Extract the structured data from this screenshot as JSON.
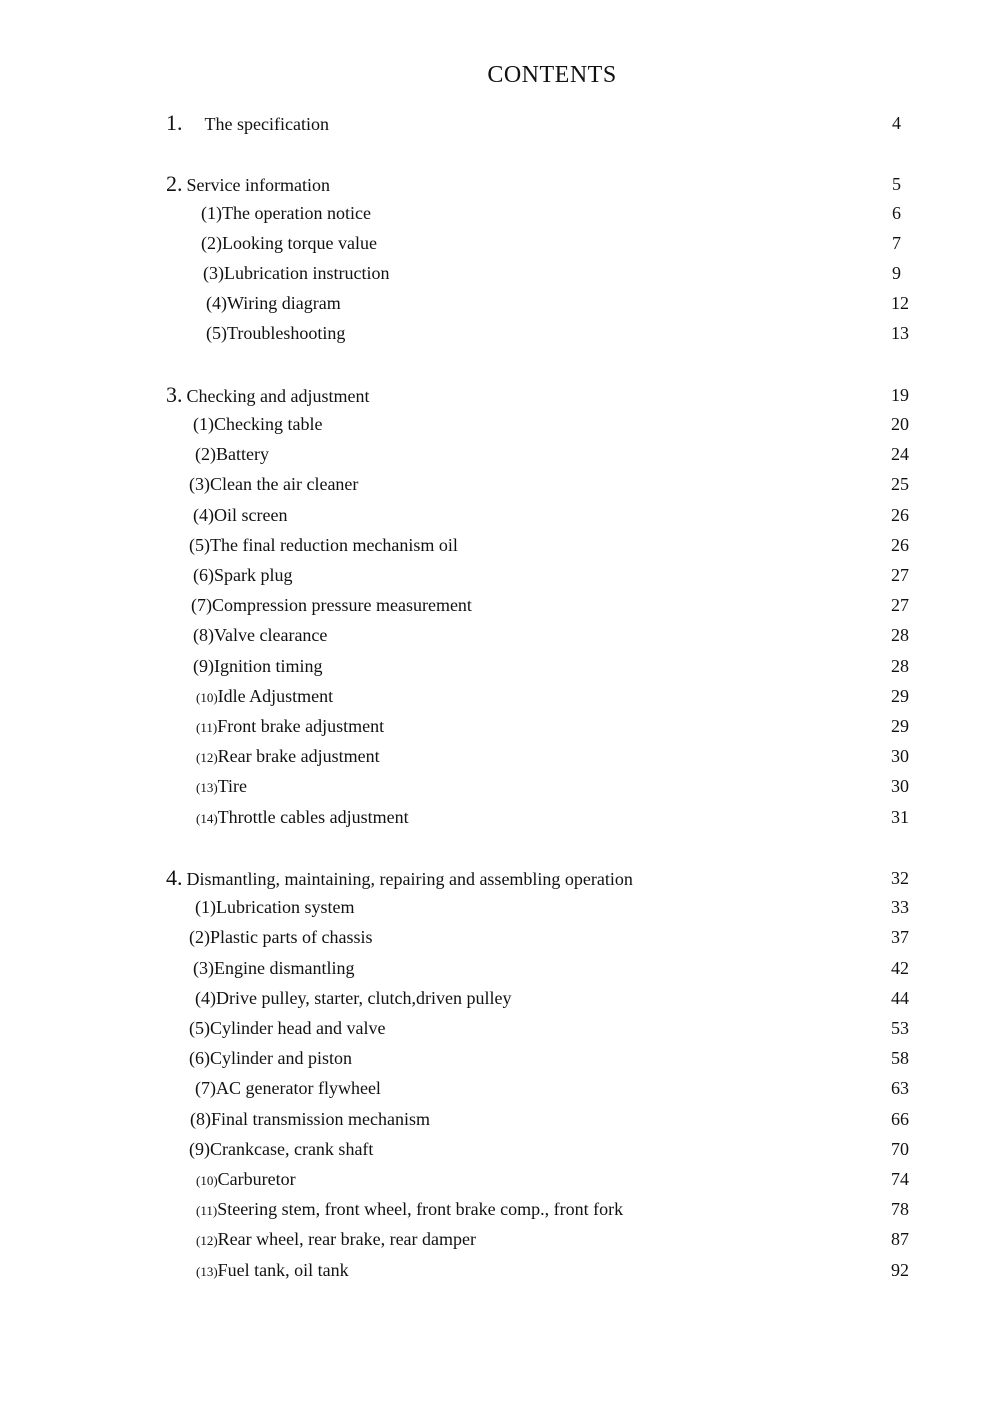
{
  "title": "CONTENTS",
  "sections": [
    {
      "number": "1.",
      "title": "The specification",
      "page": "4",
      "items": []
    },
    {
      "number": "2.",
      "title": "Service information",
      "page": "5",
      "items": [
        {
          "prefix": "(1)",
          "label": "The operation notice",
          "page": "6"
        },
        {
          "prefix": "(2)",
          "label": "Looking torque value",
          "page": "7"
        },
        {
          "prefix": "(3)",
          "label": "Lubrication instruction",
          "page": "9"
        },
        {
          "prefix": "(4)",
          "label": "Wiring diagram",
          "page": "12"
        },
        {
          "prefix": "(5)",
          "label": "Troubleshooting",
          "page": "13"
        }
      ]
    },
    {
      "number": "3.",
      "title": "Checking and adjustment",
      "page": "19",
      "items": [
        {
          "prefix": "(1)",
          "label": "Checking table",
          "page": "20"
        },
        {
          "prefix": "(2)",
          "label": "Battery",
          "page": "24"
        },
        {
          "prefix": "(3)",
          "label": "Clean the air cleaner",
          "page": "25"
        },
        {
          "prefix": "(4)",
          "label": "Oil screen",
          "page": "26"
        },
        {
          "prefix": "(5)",
          "label": "The final reduction mechanism oil",
          "page": "26"
        },
        {
          "prefix": "(6)",
          "label": "Spark plug",
          "page": "27"
        },
        {
          "prefix": "(7)",
          "label": "Compression pressure measurement",
          "page": "27"
        },
        {
          "prefix": "(8)",
          "label": "Valve clearance",
          "page": "28"
        },
        {
          "prefix": "(9)",
          "label": "Ignition timing",
          "page": "28"
        },
        {
          "prefix": "(10)",
          "label": "Idle Adjustment",
          "page": "29"
        },
        {
          "prefix": "(11)",
          "label": "Front brake adjustment",
          "page": "29"
        },
        {
          "prefix": "(12)",
          "label": "Rear brake adjustment",
          "page": "30"
        },
        {
          "prefix": "(13)",
          "label": "Tire",
          "page": "30"
        },
        {
          "prefix": "(14)",
          "label": "Throttle cables adjustment",
          "page": "31"
        }
      ]
    },
    {
      "number": "4.",
      "title": "Dismantling, maintaining, repairing and assembling operation",
      "page": "32",
      "items": [
        {
          "prefix": "(1)",
          "label": "Lubrication system",
          "page": "33"
        },
        {
          "prefix": "(2)",
          "label": "Plastic parts of chassis",
          "page": "37"
        },
        {
          "prefix": "(3)",
          "label": "Engine dismantling",
          "page": "42"
        },
        {
          "prefix": "(4)",
          "label": "Drive pulley, starter, clutch,driven pulley",
          "page": "44"
        },
        {
          "prefix": "(5)",
          "label": "Cylinder head and valve",
          "page": "53"
        },
        {
          "prefix": "(6)",
          "label": "Cylinder and piston",
          "page": "58"
        },
        {
          "prefix": "(7)",
          "label": "AC generator flywheel",
          "page": "63"
        },
        {
          "prefix": "(8)",
          "label": "Final transmission mechanism",
          "page": "66"
        },
        {
          "prefix": "(9)",
          "label": "Crankcase, crank shaft",
          "page": "70"
        },
        {
          "prefix": "(10)",
          "label": "Carburetor",
          "page": "74"
        },
        {
          "prefix": "(11)",
          "label": "Steering stem, front wheel, front brake comp., front fork",
          "page": "78"
        },
        {
          "prefix": "(12)",
          "label": "Rear wheel, rear brake, rear damper",
          "page": "87"
        },
        {
          "prefix": "(13)",
          "label": "Fuel tank, oil tank",
          "page": "92"
        }
      ]
    }
  ]
}
